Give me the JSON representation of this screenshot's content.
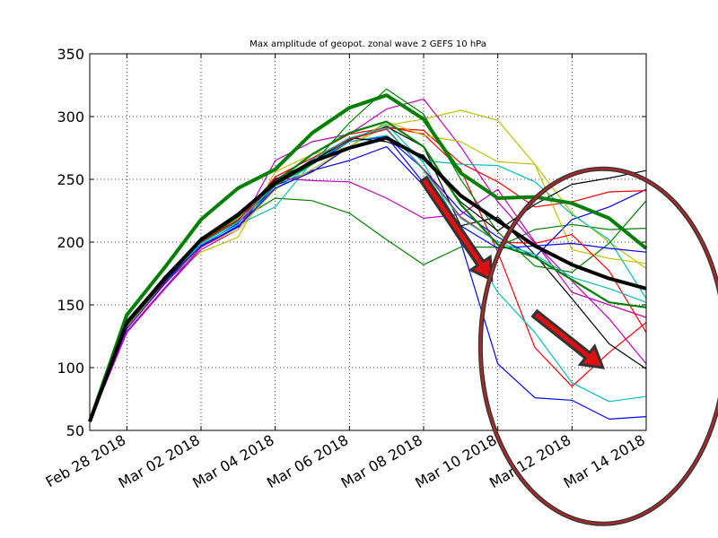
{
  "chart_data": {
    "type": "line",
    "title": "Max amplitude of geopot. zonal wave 2 GEFS 10 hPa",
    "xlabel": "",
    "ylabel": "",
    "x_range": [
      "2018-02-27",
      "2018-03-14"
    ],
    "ylim": [
      50,
      350
    ],
    "grid": true,
    "legend": "none",
    "y_ticks": [
      50,
      100,
      150,
      200,
      250,
      300,
      350
    ],
    "y_tick_labels": [
      "50",
      "100",
      "150",
      "200",
      "250",
      "300",
      "350"
    ],
    "x_ticks": [
      "2018-02-28",
      "2018-03-02",
      "2018-03-04",
      "2018-03-06",
      "2018-03-08",
      "2018-03-10",
      "2018-03-12",
      "2018-03-14"
    ],
    "x_tick_labels": [
      "Feb 28 2018",
      "Mar 02 2018",
      "Mar 04 2018",
      "Mar 06 2018",
      "Mar 08 2018",
      "Mar 10 2018",
      "Mar 12 2018",
      "Mar 14 2018"
    ],
    "x": [
      "2018-02-27",
      "2018-02-28",
      "2018-03-01",
      "2018-03-02",
      "2018-03-03",
      "2018-03-04",
      "2018-03-05",
      "2018-03-06",
      "2018-03-07",
      "2018-03-08",
      "2018-03-09",
      "2018-03-10",
      "2018-03-11",
      "2018-03-12",
      "2018-03-13",
      "2018-03-14"
    ],
    "series": [
      {
        "color": "#0000ff",
        "width": 1.2,
        "values": [
          57,
          128,
          162,
          196,
          213,
          245,
          257,
          265,
          276,
          245,
          200,
          103,
          76,
          74,
          59,
          61
        ]
      },
      {
        "color": "#ff0000",
        "width": 1.2,
        "values": [
          57,
          133,
          167,
          199,
          217,
          252,
          267,
          282,
          292,
          286,
          258,
          192,
          116,
          85,
          112,
          136
        ]
      },
      {
        "color": "#00bfbf",
        "width": 1.2,
        "values": [
          57,
          136,
          172,
          200,
          216,
          242,
          262,
          281,
          294,
          263,
          210,
          160,
          128,
          88,
          73,
          77
        ]
      },
      {
        "color": "#008000",
        "width": 1.2,
        "values": [
          57,
          136,
          170,
          202,
          217,
          235,
          233,
          223,
          202,
          182,
          196,
          196,
          210,
          214,
          210,
          211
        ]
      },
      {
        "color": "#bfbf00",
        "width": 1.2,
        "values": [
          57,
          132,
          168,
          192,
          204,
          256,
          270,
          276,
          293,
          298,
          305,
          297,
          262,
          223,
          200,
          179
        ]
      },
      {
        "color": "#bf00bf",
        "width": 1.2,
        "values": [
          57,
          128,
          162,
          194,
          210,
          265,
          280,
          286,
          306,
          314,
          276,
          232,
          199,
          169,
          139,
          103
        ]
      },
      {
        "color": "#000000",
        "width": 1.2,
        "values": [
          57,
          136,
          172,
          199,
          220,
          250,
          264,
          281,
          292,
          276,
          213,
          220,
          190,
          155,
          119,
          99
        ]
      },
      {
        "color": "#0000ff",
        "width": 1.2,
        "values": [
          57,
          131,
          166,
          197,
          215,
          249,
          262,
          280,
          284,
          258,
          225,
          204,
          188,
          218,
          228,
          242
        ]
      },
      {
        "color": "#ff0000",
        "width": 1.2,
        "values": [
          57,
          133,
          168,
          200,
          220,
          249,
          270,
          286,
          291,
          289,
          263,
          248,
          228,
          232,
          240,
          241
        ]
      },
      {
        "color": "#00bfbf",
        "width": 1.2,
        "values": [
          57,
          136,
          170,
          198,
          214,
          228,
          264,
          280,
          285,
          265,
          262,
          261,
          248,
          222,
          202,
          155
        ]
      },
      {
        "color": "#008000",
        "width": 1.2,
        "values": [
          57,
          137,
          171,
          200,
          216,
          245,
          262,
          295,
          322,
          302,
          250,
          208,
          181,
          176,
          199,
          233
        ]
      },
      {
        "color": "#bfbf00",
        "width": 1.2,
        "values": [
          57,
          134,
          168,
          196,
          210,
          242,
          258,
          276,
          296,
          285,
          280,
          264,
          262,
          194,
          187,
          183
        ]
      },
      {
        "color": "#bf00bf",
        "width": 1.2,
        "values": [
          57,
          129,
          163,
          196,
          212,
          251,
          249,
          248,
          235,
          219,
          222,
          242,
          200,
          160,
          150,
          140
        ]
      },
      {
        "color": "#000000",
        "width": 1.2,
        "values": [
          57,
          137,
          172,
          203,
          220,
          250,
          264,
          283,
          280,
          269,
          232,
          209,
          230,
          246,
          251,
          257
        ]
      },
      {
        "color": "#0000ff",
        "width": 1.2,
        "values": [
          57,
          134,
          168,
          197,
          212,
          243,
          256,
          276,
          284,
          247,
          213,
          195,
          197,
          199,
          195,
          192
        ]
      },
      {
        "color": "#ff0000",
        "width": 1.2,
        "values": [
          57,
          135,
          170,
          200,
          218,
          246,
          266,
          282,
          290,
          258,
          220,
          200,
          199,
          206,
          177,
          128
        ]
      },
      {
        "color": "#00bfbf",
        "width": 1.2,
        "values": [
          57,
          136,
          171,
          199,
          216,
          246,
          266,
          283,
          291,
          257,
          219,
          200,
          190,
          172,
          163,
          152
        ]
      },
      {
        "color": "#008000",
        "width": 2.2,
        "values": [
          57,
          134,
          169,
          201,
          220,
          248,
          270,
          287,
          296,
          276,
          230,
          198,
          188,
          170,
          152,
          148
        ]
      },
      {
        "color": "#008000",
        "width": 4,
        "values": [
          57,
          142,
          179,
          218,
          243,
          258,
          287,
          307,
          317,
          298,
          255,
          235,
          236,
          231,
          219,
          195
        ]
      },
      {
        "color": "#000000",
        "width": 4,
        "values": [
          57,
          136,
          170,
          202,
          222,
          247,
          264,
          275,
          283,
          267,
          237,
          217,
          197,
          182,
          171,
          163
        ]
      }
    ],
    "annotations": [
      {
        "type": "arrow",
        "color": "#dd1111",
        "from": [
          "2018-03-08",
          250
        ],
        "to": [
          "2018-03-09T20:00",
          170
        ]
      },
      {
        "type": "arrow",
        "color": "#dd1111",
        "from": [
          "2018-03-11",
          143
        ],
        "to": [
          "2018-03-12T20:00",
          100
        ]
      },
      {
        "type": "ellipse",
        "color": "#a52a2a",
        "center": [
          "2018-03-12T20:00",
          117
        ],
        "rx_days": 3.3,
        "ry": 198
      }
    ]
  }
}
